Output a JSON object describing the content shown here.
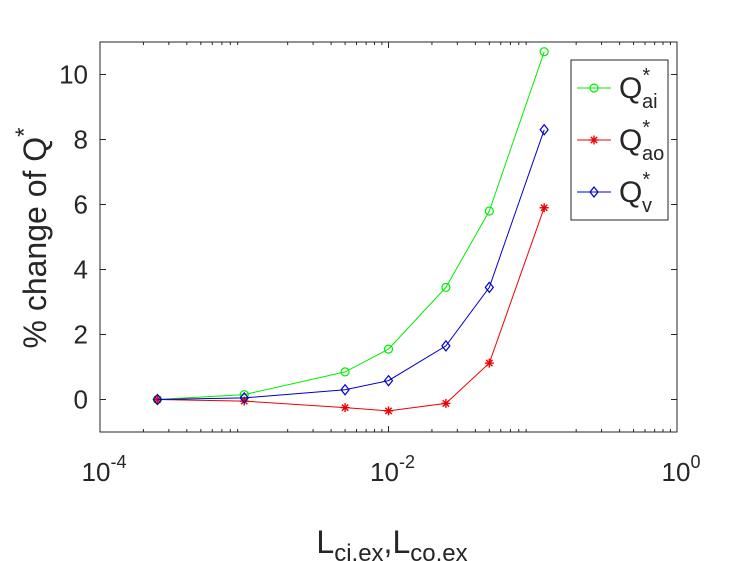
{
  "chart_data": {
    "type": "line",
    "title": "",
    "xscale": "log",
    "xlim": [
      0.0001,
      1
    ],
    "ylim": [
      -1,
      11
    ],
    "xlabel": {
      "main": "L",
      "sub1": "ci,ex",
      "sep": ",",
      "main2": "L",
      "sub2": "co,ex"
    },
    "ylabel": {
      "text": "% change of Q",
      "sup": "*"
    },
    "x_ticks": [
      {
        "value": 0.0001,
        "base": "10",
        "exp": "-4"
      },
      {
        "value": 0.01,
        "base": "10",
        "exp": "-2"
      },
      {
        "value": 1,
        "base": "10",
        "exp": "0"
      }
    ],
    "y_ticks": [
      "0",
      "2",
      "4",
      "6",
      "8",
      "10"
    ],
    "grid": false,
    "legend_position": "top-right",
    "x": [
      0.00025,
      0.001,
      0.005,
      0.01,
      0.025,
      0.05,
      0.12
    ],
    "series": [
      {
        "name_main": "Q",
        "name_sup": "*",
        "name_sub": "ai",
        "color": "#00ee00",
        "marker": "circle",
        "values": [
          0.0,
          0.15,
          0.85,
          1.55,
          3.45,
          5.8,
          10.7
        ]
      },
      {
        "name_main": "Q",
        "name_sup": "*",
        "name_sub": "ao",
        "color": "#ee0000",
        "marker": "asterisk",
        "values": [
          0.0,
          -0.05,
          -0.25,
          -0.35,
          -0.12,
          1.12,
          5.9
        ]
      },
      {
        "name_main": "Q",
        "name_sup": "*",
        "name_sub": "v",
        "color": "#0000cc",
        "marker": "diamond",
        "values": [
          0.0,
          0.05,
          0.3,
          0.58,
          1.65,
          3.45,
          8.3
        ]
      }
    ]
  }
}
